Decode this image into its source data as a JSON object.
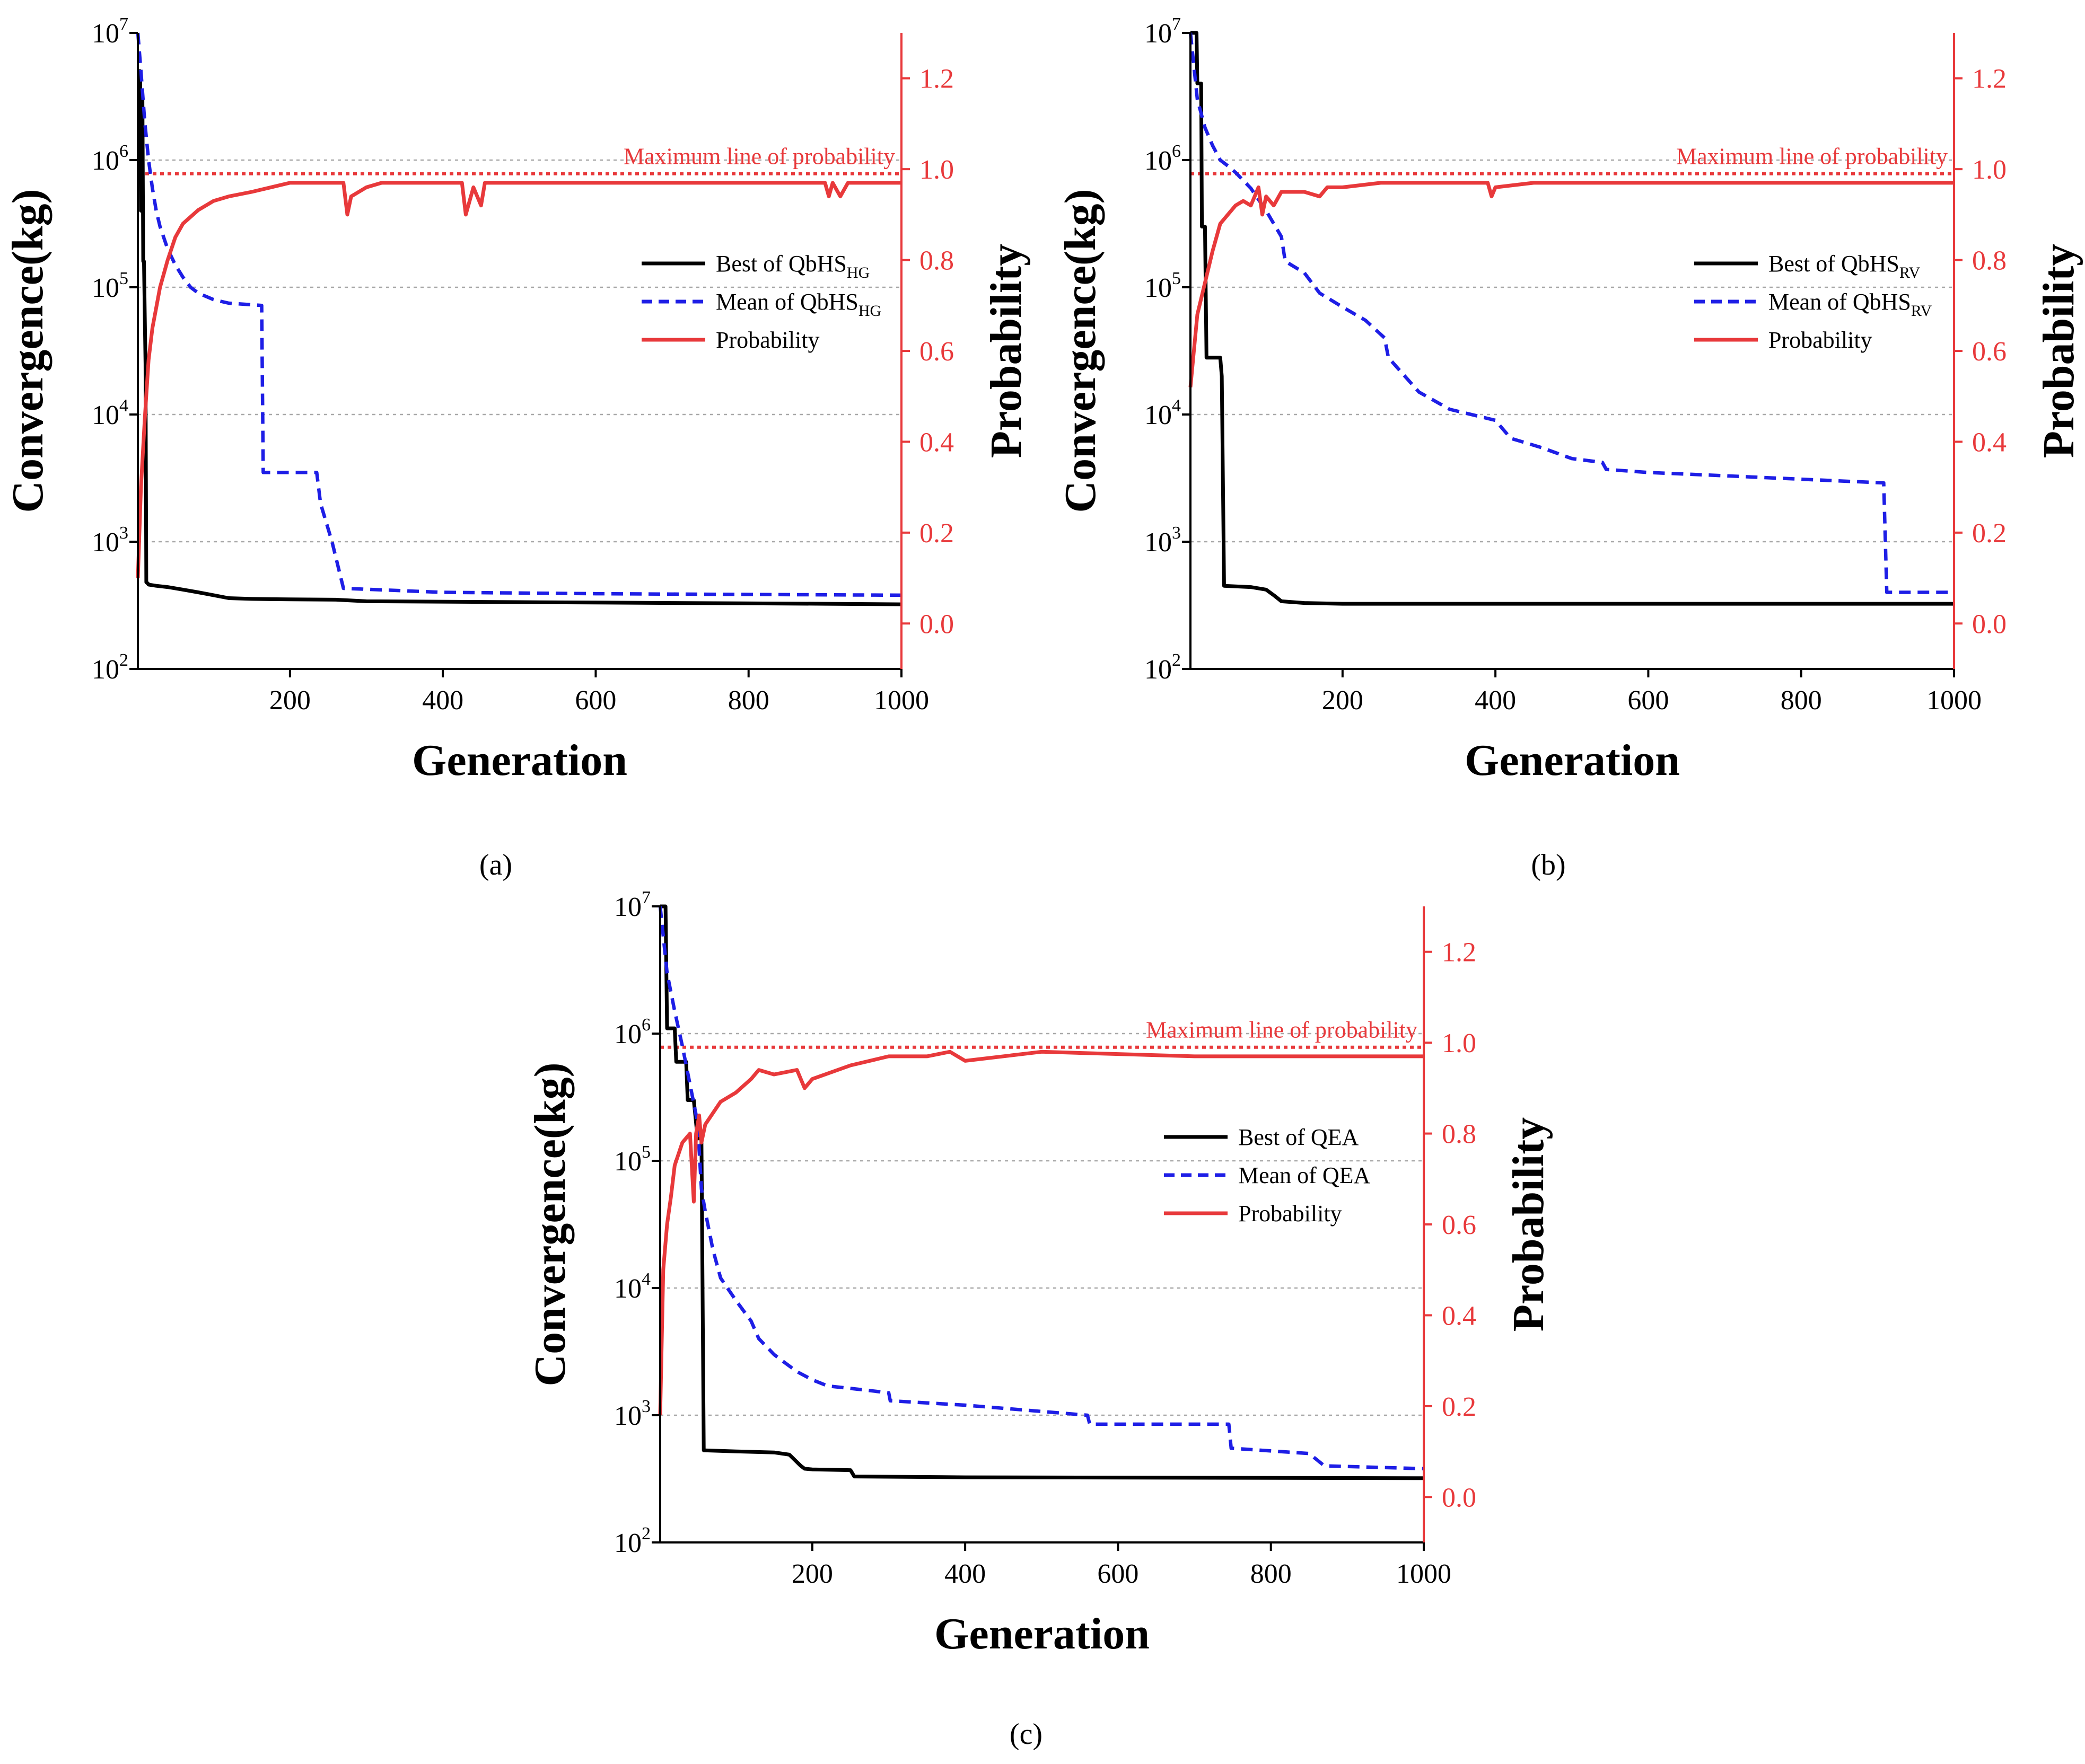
{
  "figure": {
    "captions": [
      "(a)",
      "(b)",
      "(c)"
    ]
  },
  "chart_data": [
    {
      "type": "line",
      "panel": "(a)",
      "xlabel": "Generation",
      "ylabel": "Convergence(kg)",
      "y2label": "Probability",
      "xlim": [
        1,
        1000
      ],
      "ylim_log10": [
        2,
        7
      ],
      "y2lim": [
        -0.1,
        1.3
      ],
      "xticks": [
        "200",
        "400",
        "600",
        "800",
        "1000"
      ],
      "yticks_base": "10",
      "yticks_exp": [
        "2",
        "3",
        "4",
        "5",
        "6",
        "7"
      ],
      "y2ticks": [
        "0.0",
        "0.2",
        "0.4",
        "0.6",
        "0.8",
        "1.0",
        "1.2"
      ],
      "max_line": {
        "label": "Maximum line of probability",
        "value": 0.99
      },
      "legend": {
        "position": "right",
        "best_base": "Best of QbHS",
        "mean_base": "Mean of QbHS",
        "sub": "HG",
        "prob": "Probability"
      },
      "series": [
        {
          "name": "Best of QbHS_HG",
          "axis": "left",
          "x": [
            1,
            4,
            5,
            7,
            8,
            9,
            11,
            12,
            14,
            15,
            25,
            40,
            60,
            80,
            100,
            120,
            150,
            200,
            260,
            300,
            500,
            700,
            900,
            1000
          ],
          "y": [
            5000000,
            5000000,
            400000,
            3000000,
            160000,
            160000,
            25000,
            480,
            470,
            460,
            450,
            440,
            420,
            400,
            380,
            360,
            355,
            352,
            350,
            340,
            335,
            330,
            325,
            322
          ]
        },
        {
          "name": "Mean of QbHS_HG",
          "axis": "left",
          "x": [
            1,
            5,
            10,
            15,
            20,
            25,
            30,
            40,
            50,
            60,
            70,
            80,
            100,
            120,
            163,
            165,
            235,
            240,
            255,
            270,
            400,
            600,
            800,
            1000
          ],
          "y": [
            10000000,
            5000000,
            2000000,
            1000000,
            600000,
            400000,
            300000,
            200000,
            150000,
            120000,
            100000,
            90000,
            80000,
            75000,
            72000,
            3500,
            3500,
            2000,
            1000,
            430,
            400,
            390,
            385,
            380
          ]
        },
        {
          "name": "Probability",
          "axis": "right",
          "x": [
            1,
            5,
            10,
            15,
            20,
            30,
            40,
            50,
            60,
            80,
            100,
            120,
            150,
            200,
            270,
            275,
            280,
            300,
            320,
            400,
            425,
            430,
            440,
            450,
            455,
            460,
            500,
            600,
            700,
            800,
            900,
            905,
            910,
            920,
            930,
            1000
          ],
          "y": [
            0.1,
            0.3,
            0.45,
            0.58,
            0.65,
            0.74,
            0.8,
            0.85,
            0.88,
            0.91,
            0.93,
            0.94,
            0.95,
            0.97,
            0.97,
            0.9,
            0.94,
            0.96,
            0.97,
            0.97,
            0.97,
            0.9,
            0.96,
            0.92,
            0.97,
            0.97,
            0.97,
            0.97,
            0.97,
            0.97,
            0.97,
            0.94,
            0.97,
            0.94,
            0.97,
            0.97
          ]
        }
      ]
    },
    {
      "type": "line",
      "panel": "(b)",
      "xlabel": "Generation",
      "ylabel": "Convergence(kg)",
      "y2label": "Probability",
      "xlim": [
        1,
        1000
      ],
      "ylim_log10": [
        2,
        7
      ],
      "y2lim": [
        -0.1,
        1.3
      ],
      "xticks": [
        "200",
        "400",
        "600",
        "800",
        "1000"
      ],
      "yticks_base": "10",
      "yticks_exp": [
        "2",
        "3",
        "4",
        "5",
        "6",
        "7"
      ],
      "y2ticks": [
        "0.0",
        "0.2",
        "0.4",
        "0.6",
        "0.8",
        "1.0",
        "1.2"
      ],
      "max_line": {
        "label": "Maximum line of probability",
        "value": 0.99
      },
      "legend": {
        "position": "right",
        "best_base": "Best of QbHS",
        "mean_base": "Mean of QbHS",
        "sub": "RV",
        "prob": "Probability"
      },
      "series": [
        {
          "name": "Best of QbHS_RV",
          "axis": "left",
          "x": [
            1,
            9,
            10,
            15,
            16,
            20,
            22,
            40,
            42,
            45,
            80,
            100,
            110,
            120,
            150,
            200,
            1000
          ],
          "y": [
            10000000,
            10000000,
            4000000,
            4000000,
            300000,
            300000,
            28000,
            28000,
            20000,
            450,
            440,
            420,
            380,
            340,
            330,
            325,
            325
          ]
        },
        {
          "name": "Mean of QbHS_RV",
          "axis": "left",
          "x": [
            1,
            10,
            20,
            30,
            40,
            50,
            60,
            80,
            100,
            120,
            125,
            150,
            170,
            200,
            230,
            255,
            260,
            300,
            340,
            400,
            420,
            460,
            500,
            540,
            545,
            600,
            700,
            800,
            908,
            912,
            1000
          ],
          "y": [
            10000000,
            3000000,
            1800000,
            1300000,
            1000000,
            900000,
            800000,
            600000,
            400000,
            250000,
            160000,
            130000,
            90000,
            70000,
            55000,
            40000,
            28000,
            15000,
            11000,
            9000,
            6500,
            5500,
            4500,
            4200,
            3700,
            3500,
            3300,
            3100,
            2900,
            400,
            400
          ]
        },
        {
          "name": "Probability",
          "axis": "right",
          "x": [
            1,
            10,
            20,
            30,
            40,
            50,
            60,
            70,
            80,
            90,
            95,
            100,
            110,
            120,
            150,
            170,
            180,
            200,
            250,
            300,
            390,
            395,
            400,
            450,
            500,
            600,
            700,
            800,
            900,
            1000
          ],
          "y": [
            0.52,
            0.68,
            0.75,
            0.82,
            0.88,
            0.9,
            0.92,
            0.93,
            0.92,
            0.96,
            0.9,
            0.94,
            0.92,
            0.95,
            0.95,
            0.94,
            0.96,
            0.96,
            0.97,
            0.97,
            0.97,
            0.94,
            0.96,
            0.97,
            0.97,
            0.97,
            0.97,
            0.97,
            0.97,
            0.97
          ]
        }
      ]
    },
    {
      "type": "line",
      "panel": "(c)",
      "xlabel": "Generation",
      "ylabel": "Convergence(kg)",
      "y2label": "Probability",
      "xlim": [
        1,
        1000
      ],
      "ylim_log10": [
        2,
        7
      ],
      "y2lim": [
        -0.1,
        1.3
      ],
      "xticks": [
        "200",
        "400",
        "600",
        "800",
        "1000"
      ],
      "yticks_base": "10",
      "yticks_exp": [
        "2",
        "3",
        "4",
        "5",
        "6",
        "7"
      ],
      "y2ticks": [
        "0.0",
        "0.2",
        "0.4",
        "0.6",
        "0.8",
        "1.0",
        "1.2"
      ],
      "max_line": {
        "label": "Maximum line of probability",
        "value": 0.99
      },
      "legend": {
        "position": "right",
        "best_base": "Best of QEA",
        "mean_base": "Mean of QEA",
        "sub": "",
        "prob": "Probability"
      },
      "series": [
        {
          "name": "Best of QEA",
          "axis": "left",
          "x": [
            1,
            8,
            10,
            20,
            22,
            35,
            37,
            45,
            50,
            55,
            58,
            100,
            150,
            170,
            185,
            190,
            200,
            250,
            255,
            400,
            1000
          ],
          "y": [
            10000000,
            10000000,
            1100000,
            1100000,
            600000,
            600000,
            300000,
            300000,
            150000,
            150000,
            530,
            520,
            510,
            490,
            400,
            380,
            375,
            370,
            330,
            325,
            320
          ]
        },
        {
          "name": "Mean of QEA",
          "axis": "left",
          "x": [
            1,
            10,
            20,
            30,
            40,
            50,
            55,
            60,
            70,
            80,
            100,
            120,
            130,
            150,
            160,
            180,
            200,
            220,
            260,
            300,
            302,
            400,
            560,
            563,
            745,
            748,
            850,
            870,
            1000
          ],
          "y": [
            10000000,
            3000000,
            1500000,
            800000,
            400000,
            200000,
            60000,
            40000,
            20000,
            12000,
            8000,
            5500,
            4000,
            3000,
            2700,
            2200,
            1900,
            1700,
            1600,
            1500,
            1300,
            1200,
            1000,
            850,
            850,
            550,
            500,
            400,
            380
          ]
        },
        {
          "name": "Probability",
          "axis": "right",
          "x": [
            1,
            5,
            10,
            15,
            20,
            30,
            40,
            45,
            48,
            52,
            55,
            60,
            80,
            100,
            120,
            130,
            150,
            180,
            190,
            200,
            250,
            300,
            350,
            380,
            400,
            500,
            700,
            900,
            1000
          ],
          "y": [
            0.18,
            0.5,
            0.6,
            0.66,
            0.73,
            0.78,
            0.8,
            0.65,
            0.8,
            0.84,
            0.78,
            0.82,
            0.87,
            0.89,
            0.92,
            0.94,
            0.93,
            0.94,
            0.9,
            0.92,
            0.95,
            0.97,
            0.97,
            0.98,
            0.96,
            0.98,
            0.97,
            0.97,
            0.97
          ]
        }
      ]
    }
  ]
}
